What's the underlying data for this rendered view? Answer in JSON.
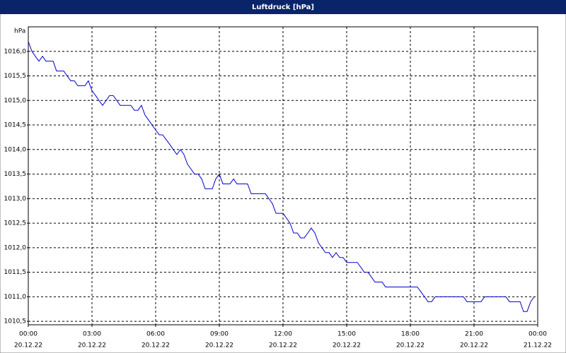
{
  "chart_data": {
    "type": "line",
    "title": "Luftdruck [hPa]",
    "y_unit": "hPa",
    "color": "#0000cc",
    "grid": true,
    "xlim": [
      0,
      24
    ],
    "ylim": [
      1010.43,
      1016.5
    ],
    "xticks": [
      {
        "value": 0,
        "label": "00:00",
        "date": "20.12.22"
      },
      {
        "value": 3,
        "label": "03:00",
        "date": "20.12.22"
      },
      {
        "value": 6,
        "label": "06:00",
        "date": "20.12.22"
      },
      {
        "value": 9,
        "label": "09:00",
        "date": "20.12.22"
      },
      {
        "value": 12,
        "label": "12:00",
        "date": "20.12.22"
      },
      {
        "value": 15,
        "label": "15:00",
        "date": "20.12.22"
      },
      {
        "value": 18,
        "label": "18:00",
        "date": "20.12.22"
      },
      {
        "value": 21,
        "label": "21:00",
        "date": "20.12.22"
      },
      {
        "value": 24,
        "label": "00:00",
        "date": "21.12.22"
      }
    ],
    "yticks": [
      {
        "value": 1010.5,
        "label": "1010,5"
      },
      {
        "value": 1011,
        "label": "1011,0"
      },
      {
        "value": 1011.5,
        "label": "1011,5"
      },
      {
        "value": 1012,
        "label": "1012,0"
      },
      {
        "value": 1012.5,
        "label": "1012,5"
      },
      {
        "value": 1013,
        "label": "1013,0"
      },
      {
        "value": 1013.5,
        "label": "1013,5"
      },
      {
        "value": 1014,
        "label": "1014,0"
      },
      {
        "value": 1014.5,
        "label": "1014,5"
      },
      {
        "value": 1015,
        "label": "1015,0"
      },
      {
        "value": 1015.5,
        "label": "1015,5"
      },
      {
        "value": 1016,
        "label": "1016,0"
      }
    ],
    "x": [
      0,
      0.17,
      0.33,
      0.5,
      0.67,
      0.83,
      1.17,
      1.33,
      1.67,
      1.83,
      2,
      2.17,
      2.33,
      2.67,
      2.83,
      3,
      3.17,
      3.33,
      3.5,
      3.67,
      3.83,
      4,
      4.17,
      4.33,
      4.83,
      5,
      5.17,
      5.33,
      5.5,
      5.67,
      5.83,
      6,
      6.17,
      6.33,
      6.5,
      6.67,
      6.83,
      7,
      7.17,
      7.33,
      7.5,
      7.67,
      7.83,
      8,
      8.17,
      8.33,
      8.67,
      8.83,
      9,
      9.17,
      9.5,
      9.67,
      9.83,
      10.33,
      10.5,
      11.17,
      11.33,
      11.5,
      11.67,
      12,
      12.17,
      12.33,
      12.5,
      12.67,
      12.83,
      13,
      13.17,
      13.33,
      13.5,
      13.67,
      13.83,
      14,
      14.17,
      14.33,
      14.5,
      14.67,
      14.83,
      15,
      15.5,
      15.67,
      15.83,
      16,
      16.17,
      16.33,
      16.67,
      16.83,
      18.33,
      18.5,
      18.67,
      18.83,
      19,
      19.17,
      20.5,
      20.67,
      21.33,
      21.5,
      22.5,
      22.67,
      23.17,
      23.33,
      23.5,
      23.67,
      23.83
    ],
    "values": [
      1016.2,
      1016.0,
      1015.9,
      1015.8,
      1015.9,
      1015.8,
      1015.8,
      1015.6,
      1015.6,
      1015.5,
      1015.4,
      1015.4,
      1015.3,
      1015.3,
      1015.4,
      1015.2,
      1015.1,
      1015.0,
      1014.9,
      1015.0,
      1015.1,
      1015.1,
      1015.0,
      1014.9,
      1014.9,
      1014.8,
      1014.8,
      1014.9,
      1014.7,
      1014.6,
      1014.5,
      1014.4,
      1014.3,
      1014.3,
      1014.2,
      1014.1,
      1014.0,
      1013.9,
      1014.0,
      1013.9,
      1013.7,
      1013.6,
      1013.5,
      1013.5,
      1013.4,
      1013.2,
      1013.2,
      1013.4,
      1013.5,
      1013.3,
      1013.3,
      1013.4,
      1013.3,
      1013.3,
      1013.1,
      1013.1,
      1013.0,
      1012.9,
      1012.7,
      1012.7,
      1012.6,
      1012.5,
      1012.3,
      1012.3,
      1012.2,
      1012.2,
      1012.3,
      1012.4,
      1012.3,
      1012.1,
      1012.0,
      1011.9,
      1011.9,
      1011.8,
      1011.9,
      1011.8,
      1011.8,
      1011.7,
      1011.7,
      1011.6,
      1011.5,
      1011.5,
      1011.4,
      1011.3,
      1011.3,
      1011.2,
      1011.2,
      1011.1,
      1011.0,
      1010.9,
      1010.9,
      1011.0,
      1011.0,
      1010.9,
      1010.9,
      1011.0,
      1011.0,
      1010.9,
      1010.9,
      1010.7,
      1010.7,
      1010.9,
      1011.0
    ]
  }
}
